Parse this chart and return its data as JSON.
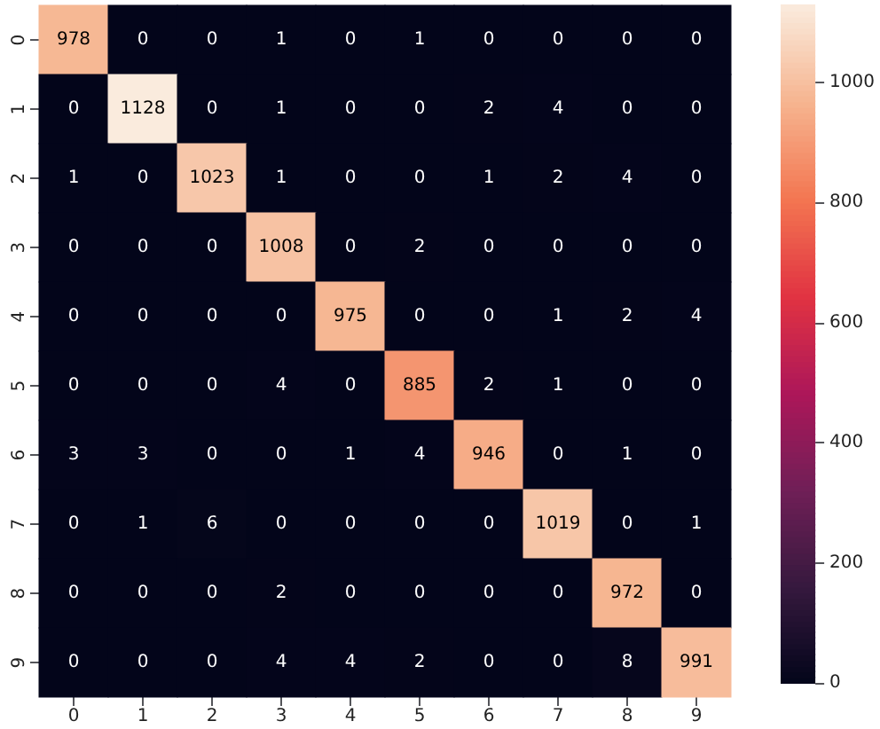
{
  "chart_data": {
    "type": "heatmap",
    "categories": [
      "0",
      "1",
      "2",
      "3",
      "4",
      "5",
      "6",
      "7",
      "8",
      "9"
    ],
    "y_categories": [
      "0",
      "1",
      "2",
      "3",
      "4",
      "5",
      "6",
      "7",
      "8",
      "9"
    ],
    "cells": [
      [
        978,
        0,
        0,
        1,
        0,
        1,
        0,
        0,
        0,
        0
      ],
      [
        0,
        1128,
        0,
        1,
        0,
        0,
        2,
        4,
        0,
        0
      ],
      [
        1,
        0,
        1023,
        1,
        0,
        0,
        1,
        2,
        4,
        0
      ],
      [
        0,
        0,
        0,
        1008,
        0,
        2,
        0,
        0,
        0,
        0
      ],
      [
        0,
        0,
        0,
        0,
        975,
        0,
        0,
        1,
        2,
        4
      ],
      [
        0,
        0,
        0,
        4,
        0,
        885,
        2,
        1,
        0,
        0
      ],
      [
        3,
        3,
        0,
        0,
        1,
        4,
        946,
        0,
        1,
        0
      ],
      [
        0,
        1,
        6,
        0,
        0,
        0,
        0,
        1019,
        0,
        1
      ],
      [
        0,
        0,
        0,
        2,
        0,
        0,
        0,
        0,
        972,
        0
      ],
      [
        0,
        0,
        0,
        4,
        4,
        2,
        0,
        0,
        8,
        991
      ]
    ],
    "clim": [
      0,
      1128
    ],
    "cticks": [
      0,
      200,
      400,
      600,
      800,
      1000
    ],
    "data_labels": true
  }
}
